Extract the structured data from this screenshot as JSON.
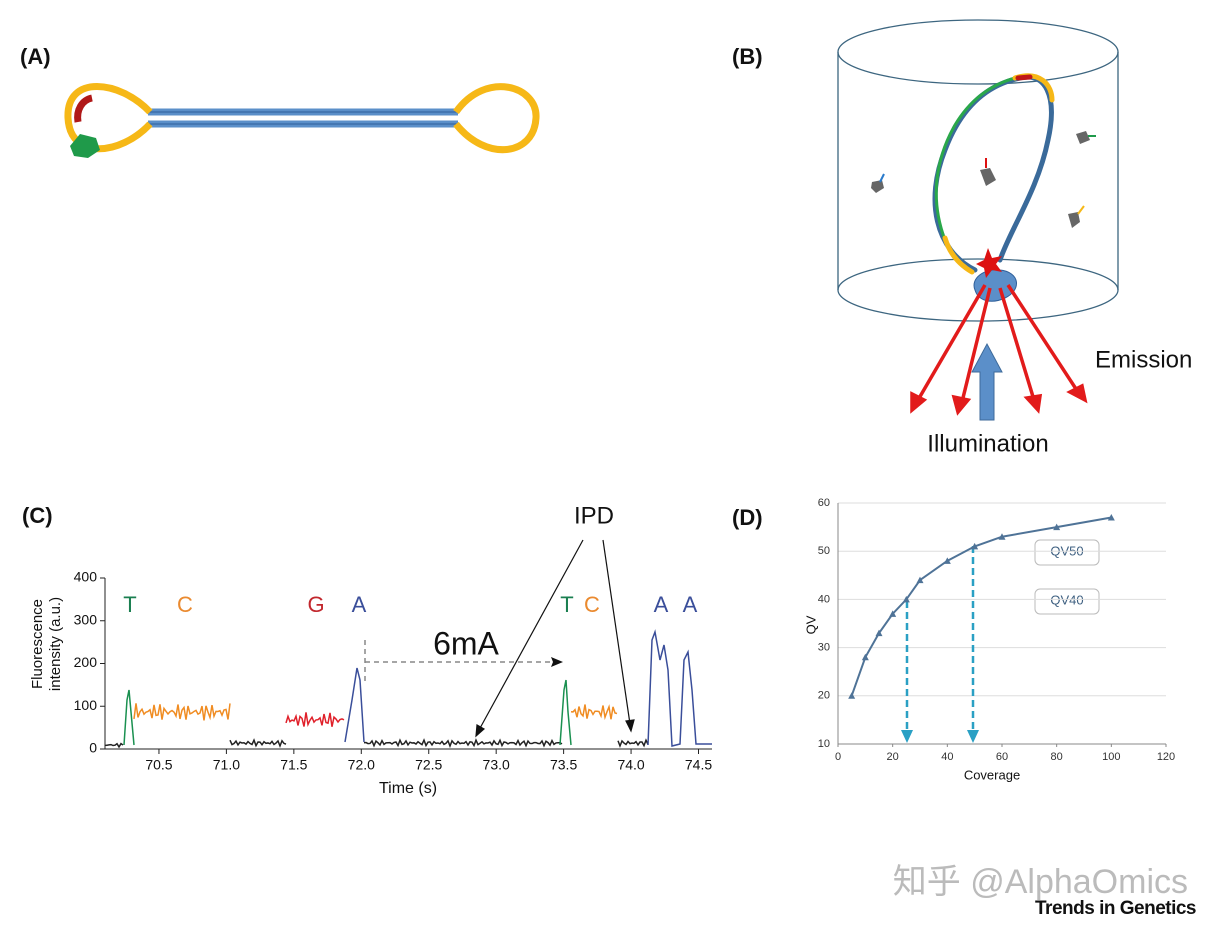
{
  "panels": [
    "(A)",
    "(B)",
    "(C)",
    "(D)"
  ],
  "emission": "Emission",
  "illumination": "Illumination",
  "watermark": "知乎 @AlphaOmics",
  "journal": "Trends in Genetics",
  "chart_data": [
    {
      "type": "line",
      "xlabel": "Time (s)",
      "ylabel": [
        "Fluorescence",
        "intensity (a.u.)"
      ],
      "annotations": [
        "IPD",
        "6mA"
      ],
      "bases": [
        "T",
        "C",
        "G",
        "A",
        "T",
        "C",
        "A",
        "A"
      ],
      "xlim": [
        70.1,
        74.6
      ],
      "xticks": [
        70.5,
        {
          "value": 71,
          "label": "71.0"
        },
        71.5,
        {
          "value": 72,
          "label": "72.0"
        },
        72.5,
        {
          "value": 73,
          "label": "73.0"
        },
        73.5,
        {
          "value": 74,
          "label": "74.0"
        },
        74.5
      ],
      "ylim": [
        0,
        400
      ],
      "yticks": [
        0,
        100,
        200,
        300,
        400
      ]
    },
    {
      "type": "line",
      "xlabel": "Coverage",
      "ylabel": "QV",
      "annotations": [
        "QV50",
        "QV40"
      ],
      "x": [
        5,
        10,
        15,
        20,
        25,
        30,
        40,
        50,
        60,
        80,
        100
      ],
      "series": [
        {
          "color": "#4f7397",
          "values": [
            20,
            28,
            33,
            37,
            40,
            44,
            48,
            51,
            53,
            55,
            57
          ]
        }
      ],
      "xlim": [
        0,
        120
      ],
      "xticks": [
        0,
        20,
        40,
        60,
        80,
        100,
        120
      ],
      "ylim": [
        10,
        60
      ],
      "yticks": [
        10,
        20,
        30,
        40,
        50,
        60
      ],
      "grid": true
    }
  ]
}
